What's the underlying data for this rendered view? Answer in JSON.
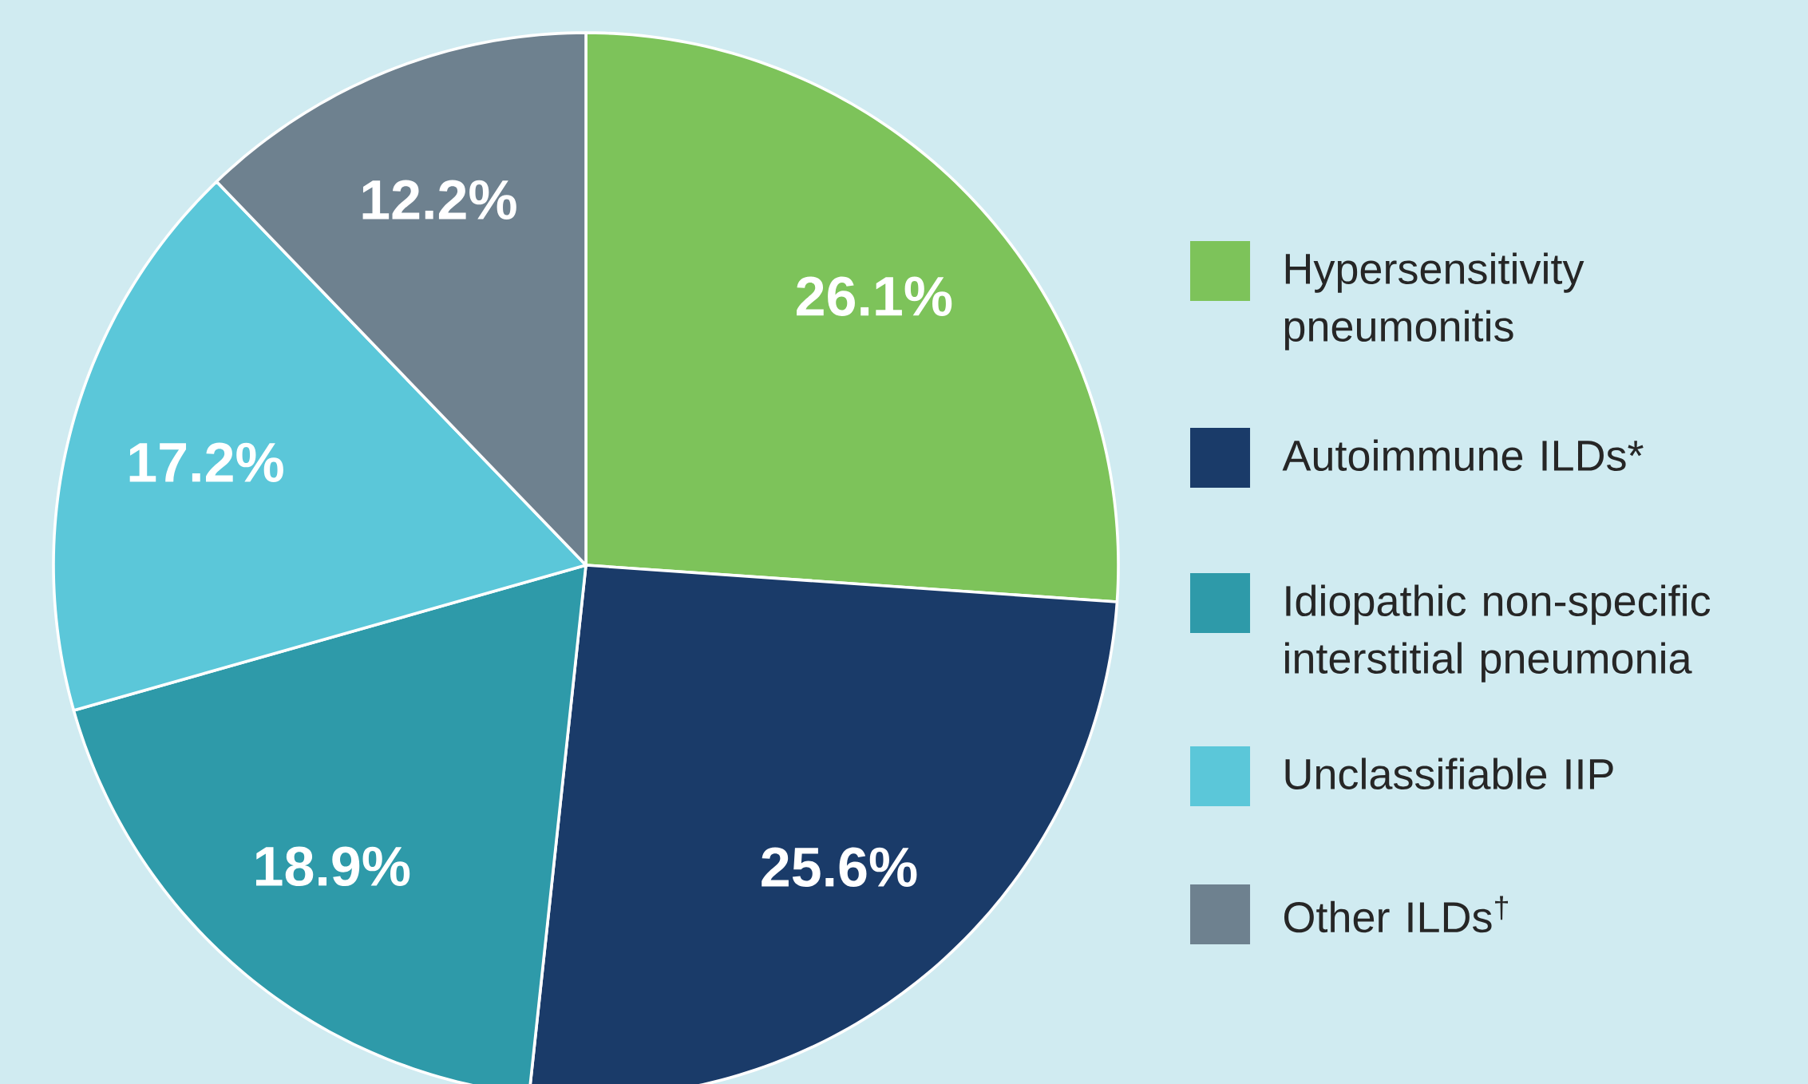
{
  "chart_data": {
    "type": "pie",
    "legend": "right",
    "categories": [
      "Hypersensitivity pneumonitis",
      "Autoimmune ILDs*",
      "Idiopathic non-specific interstitial pneumonia",
      "Unclassifiable IIP",
      "Other ILDs$^{†}$"
    ],
    "values": [
      26.1,
      25.6,
      18.9,
      17.2,
      12.2
    ],
    "value_labels": [
      "26.1%",
      "25.6%",
      "18.9%",
      "17.2%",
      "12.2%"
    ],
    "colors": [
      "#7dc35a",
      "#1a3b69",
      "#2e9aa9",
      "#5bc7d9",
      "#6e818f"
    ]
  }
}
